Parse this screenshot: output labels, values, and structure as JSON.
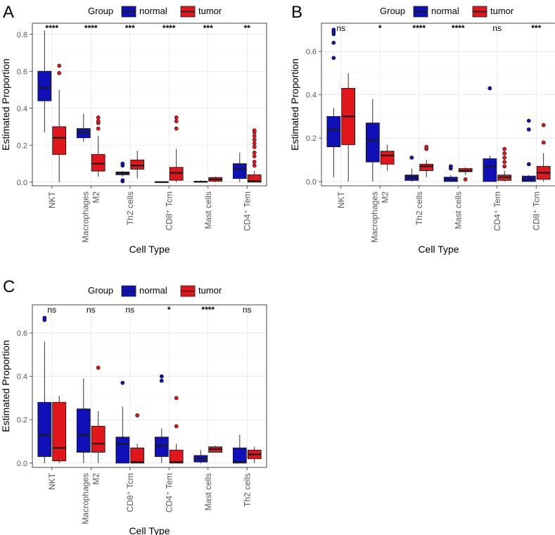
{
  "legend": {
    "title": "Group",
    "normal": "normal",
    "tumor": "tumor"
  },
  "colors": {
    "normal": "#1010b8",
    "tumor": "#e0161a",
    "outline": "#1a1a1a",
    "grid": "#dcdcdc",
    "axis": "#333333",
    "tick_label": "#555555"
  },
  "chart_data": [
    {
      "panel": "A",
      "type": "box",
      "ylabel": "Estimated Proportion",
      "xlabel": "Cell Type",
      "ylim": [
        -0.02,
        0.86
      ],
      "yticks": [
        "0.0",
        "0.2",
        "0.4",
        "0.6",
        "0.8"
      ],
      "ytick_values": [
        0,
        0.2,
        0.4,
        0.6,
        0.8
      ],
      "categories": [
        [
          "NKT"
        ],
        [
          "Macrophages",
          "M2"
        ],
        [
          "Th2 cells"
        ],
        [
          "CD8⁺ Tcm"
        ],
        [
          "Mast cells"
        ],
        [
          "CD4⁺ Tem"
        ]
      ],
      "significance": [
        "****",
        "****",
        "***",
        "****",
        "***",
        "**"
      ],
      "series": [
        {
          "name": "normal",
          "boxes": [
            {
              "lo": 0.27,
              "q1": 0.44,
              "med": 0.51,
              "q3": 0.6,
              "hi": 0.82,
              "out": []
            },
            {
              "lo": 0.22,
              "q1": 0.24,
              "med": 0.27,
              "q3": 0.29,
              "hi": 0.37,
              "out": []
            },
            {
              "lo": 0.03,
              "q1": 0.04,
              "med": 0.05,
              "q3": 0.055,
              "hi": 0.06,
              "out": [
                0.005,
                0.01,
                0.09,
                0.1
              ]
            },
            {
              "lo": 0.0,
              "q1": 0.0,
              "med": 0.0,
              "q3": 0.003,
              "hi": 0.005,
              "out": []
            },
            {
              "lo": 0.0,
              "q1": 0.0,
              "med": 0.002,
              "q3": 0.005,
              "hi": 0.01,
              "out": []
            },
            {
              "lo": 0.0,
              "q1": 0.02,
              "med": 0.07,
              "q3": 0.1,
              "hi": 0.16,
              "out": []
            }
          ]
        },
        {
          "name": "tumor",
          "boxes": [
            {
              "lo": 0.0,
              "q1": 0.15,
              "med": 0.24,
              "q3": 0.3,
              "hi": 0.5,
              "out": [
                0.59,
                0.63
              ]
            },
            {
              "lo": 0.03,
              "q1": 0.06,
              "med": 0.1,
              "q3": 0.15,
              "hi": 0.25,
              "out": [
                0.29,
                0.32,
                0.33,
                0.35
              ]
            },
            {
              "lo": 0.02,
              "q1": 0.07,
              "med": 0.09,
              "q3": 0.12,
              "hi": 0.17,
              "out": []
            },
            {
              "lo": 0.0,
              "q1": 0.01,
              "med": 0.05,
              "q3": 0.08,
              "hi": 0.18,
              "out": [
                0.29,
                0.33,
                0.35
              ]
            },
            {
              "lo": 0.0,
              "q1": 0.005,
              "med": 0.015,
              "q3": 0.025,
              "hi": 0.03,
              "out": []
            },
            {
              "lo": 0.0,
              "q1": 0.0,
              "med": 0.005,
              "q3": 0.04,
              "hi": 0.06,
              "out": [
                0.09,
                0.11,
                0.14,
                0.16,
                0.19,
                0.21,
                0.23,
                0.25,
                0.27,
                0.28
              ]
            }
          ]
        }
      ]
    },
    {
      "panel": "B",
      "type": "box",
      "ylabel": "Estimated Proportion",
      "xlabel": "Cell Type",
      "ylim": [
        -0.02,
        0.73
      ],
      "yticks": [
        "0.0",
        "0.2",
        "0.4",
        "0.6"
      ],
      "ytick_values": [
        0,
        0.2,
        0.4,
        0.6
      ],
      "categories": [
        [
          "NKT"
        ],
        [
          "Macrophages",
          "M2"
        ],
        [
          "Th2 cells"
        ],
        [
          "Mast cells"
        ],
        [
          "CD4⁺ Tem"
        ],
        [
          "CD8⁺ Tcm"
        ]
      ],
      "significance": [
        "ns",
        "*",
        "****",
        "****",
        "ns",
        "***"
      ],
      "series": [
        {
          "name": "normal",
          "boxes": [
            {
              "lo": 0.02,
              "q1": 0.16,
              "med": 0.24,
              "q3": 0.3,
              "hi": 0.34,
              "out": [
                0.57,
                0.64,
                0.68,
                0.69,
                0.7
              ]
            },
            {
              "lo": 0.0,
              "q1": 0.09,
              "med": 0.19,
              "q3": 0.27,
              "hi": 0.38,
              "out": []
            },
            {
              "lo": 0.0,
              "q1": 0.005,
              "med": 0.02,
              "q3": 0.03,
              "hi": 0.06,
              "out": [
                0.11
              ]
            },
            {
              "lo": 0.0,
              "q1": 0.0,
              "med": 0.01,
              "q3": 0.02,
              "hi": 0.03,
              "out": [
                0.06,
                0.07
              ]
            },
            {
              "lo": 0.0,
              "q1": 0.0,
              "med": 0.07,
              "q3": 0.105,
              "hi": 0.12,
              "out": [
                0.43
              ]
            },
            {
              "lo": 0.0,
              "q1": 0.0,
              "med": 0.01,
              "q3": 0.025,
              "hi": 0.03,
              "out": [
                0.08,
                0.24,
                0.28
              ]
            }
          ]
        },
        {
          "name": "tumor",
          "boxes": [
            {
              "lo": 0.0,
              "q1": 0.17,
              "med": 0.3,
              "q3": 0.43,
              "hi": 0.5,
              "out": []
            },
            {
              "lo": 0.05,
              "q1": 0.08,
              "med": 0.12,
              "q3": 0.14,
              "hi": 0.17,
              "out": []
            },
            {
              "lo": 0.02,
              "q1": 0.05,
              "med": 0.07,
              "q3": 0.08,
              "hi": 0.1,
              "out": [
                0.15,
                0.16
              ]
            },
            {
              "lo": 0.03,
              "q1": 0.045,
              "med": 0.05,
              "q3": 0.06,
              "hi": 0.065,
              "out": [
                0.01
              ]
            },
            {
              "lo": 0.0,
              "q1": 0.005,
              "med": 0.02,
              "q3": 0.03,
              "hi": 0.05,
              "out": [
                0.07,
                0.09,
                0.11,
                0.13,
                0.15
              ]
            },
            {
              "lo": 0.0,
              "q1": 0.01,
              "med": 0.04,
              "q3": 0.07,
              "hi": 0.13,
              "out": [
                0.18,
                0.26
              ]
            }
          ]
        }
      ]
    },
    {
      "panel": "C",
      "type": "box",
      "ylabel": "Estimated Proportion",
      "xlabel": "Cell Type",
      "ylim": [
        -0.02,
        0.73
      ],
      "yticks": [
        "0.0",
        "0.2",
        "0.4",
        "0.6"
      ],
      "ytick_values": [
        0,
        0.2,
        0.4,
        0.6
      ],
      "categories": [
        [
          "NKT"
        ],
        [
          "Macrophages",
          "M2"
        ],
        [
          "CD8⁺ Tcm"
        ],
        [
          "CD4⁺ Tem"
        ],
        [
          "Mast cells"
        ],
        [
          "Th2 cells"
        ]
      ],
      "significance": [
        "ns",
        "ns",
        "ns",
        "*",
        "****",
        "ns"
      ],
      "series": [
        {
          "name": "normal",
          "boxes": [
            {
              "lo": 0.0,
              "q1": 0.03,
              "med": 0.13,
              "q3": 0.28,
              "hi": 0.56,
              "out": [
                0.66,
                0.67
              ]
            },
            {
              "lo": 0.0,
              "q1": 0.05,
              "med": 0.13,
              "q3": 0.25,
              "hi": 0.39,
              "out": []
            },
            {
              "lo": 0.0,
              "q1": 0.0,
              "med": 0.09,
              "q3": 0.12,
              "hi": 0.26,
              "out": [
                0.37
              ]
            },
            {
              "lo": 0.0,
              "q1": 0.03,
              "med": 0.08,
              "q3": 0.12,
              "hi": 0.16,
              "out": [
                0.38,
                0.4
              ]
            },
            {
              "lo": 0.0,
              "q1": 0.005,
              "med": 0.02,
              "q3": 0.035,
              "hi": 0.06,
              "out": []
            },
            {
              "lo": 0.0,
              "q1": 0.0,
              "med": 0.005,
              "q3": 0.07,
              "hi": 0.13,
              "out": []
            }
          ]
        },
        {
          "name": "tumor",
          "boxes": [
            {
              "lo": 0.0,
              "q1": 0.01,
              "med": 0.07,
              "q3": 0.28,
              "hi": 0.31,
              "out": []
            },
            {
              "lo": 0.0,
              "q1": 0.05,
              "med": 0.09,
              "q3": 0.17,
              "hi": 0.24,
              "out": [
                0.44
              ]
            },
            {
              "lo": 0.0,
              "q1": 0.0,
              "med": 0.005,
              "q3": 0.07,
              "hi": 0.09,
              "out": [
                0.22
              ]
            },
            {
              "lo": 0.0,
              "q1": 0.0,
              "med": 0.005,
              "q3": 0.06,
              "hi": 0.09,
              "out": [
                0.17,
                0.3
              ]
            },
            {
              "lo": 0.05,
              "q1": 0.05,
              "med": 0.065,
              "q3": 0.075,
              "hi": 0.08,
              "out": []
            },
            {
              "lo": 0.0,
              "q1": 0.02,
              "med": 0.04,
              "q3": 0.06,
              "hi": 0.075,
              "out": []
            }
          ]
        }
      ]
    }
  ]
}
